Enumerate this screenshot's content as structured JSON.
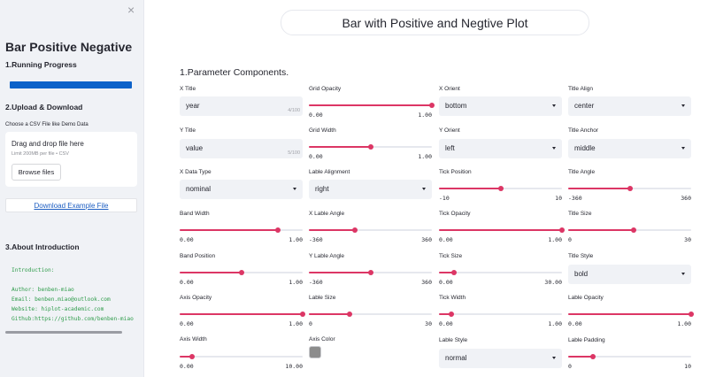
{
  "sidebar": {
    "close_glyph": "×",
    "title": "Bar Positive Negative",
    "running_heading": "1.Running Progress",
    "progress": 1.0,
    "upload_heading": "2.Upload & Download",
    "choose_label": "Choose a CSV File like Demo Data",
    "drop_text": "Drag and drop file here",
    "limit_text": "Limit 200MB per file • CSV",
    "browse_label": "Browse files",
    "download_label": "Download Example File",
    "about_heading": "3.About Introduction",
    "intro_lines": [
      "Introduction:",
      "",
      "Author: benben-miao",
      "Email: benben.miao@outlook.com",
      "Website: hiplot-academic.com",
      "Github:https://github.com/benben-miao"
    ]
  },
  "main": {
    "title": "Bar with Positive and Negtive Plot",
    "section_heading": "1.Parameter Components."
  },
  "controls": {
    "x_title": {
      "label": "X Title",
      "value": "year",
      "count": "4/100"
    },
    "y_title": {
      "label": "Y Title",
      "value": "value",
      "count": "5/100"
    },
    "x_data_type": {
      "label": "X Data Type",
      "value": "nominal"
    },
    "band_width": {
      "label": "Band Width",
      "min": "0.00",
      "max": "1.00",
      "frac": 0.8
    },
    "band_position": {
      "label": "Band Position",
      "min": "0.00",
      "max": "1.00",
      "frac": 0.5
    },
    "axis_opacity": {
      "label": "Axis Opacity",
      "min": "0.00",
      "max": "1.00",
      "frac": 1.0
    },
    "axis_width": {
      "label": "Axis Width",
      "min": "0.00",
      "max": "10.00",
      "frac": 0.1
    },
    "grid_opacity": {
      "label": "Grid Opacity",
      "min": "0.00",
      "max": "1.00",
      "frac": 1.0
    },
    "grid_width": {
      "label": "Grid Width",
      "min": "0.00",
      "max": "1.00",
      "frac": 0.5
    },
    "lable_alignment": {
      "label": "Lable Alignment",
      "value": "right"
    },
    "x_lable_angle": {
      "label": "X Lable Angle",
      "min": "-360",
      "max": "360",
      "frac": 0.375
    },
    "y_lable_angle": {
      "label": "Y Lable Angle",
      "min": "-360",
      "max": "360",
      "frac": 0.5
    },
    "lable_size": {
      "label": "Lable Size",
      "min": "0",
      "max": "30",
      "frac": 0.333
    },
    "axis_color": {
      "label": "Axis Color",
      "value": "#8c8c8c"
    },
    "x_orient": {
      "label": "X Orient",
      "value": "bottom"
    },
    "y_orient": {
      "label": "Y Orient",
      "value": "left"
    },
    "tick_position": {
      "label": "Tick Position",
      "min": "-10",
      "max": "10",
      "frac": 0.5
    },
    "tick_opacity": {
      "label": "Tick Opacity",
      "min": "0.00",
      "max": "1.00",
      "frac": 1.0
    },
    "tick_size": {
      "label": "Tick Size",
      "min": "0.00",
      "max": "30.00",
      "frac": 0.12
    },
    "tick_width": {
      "label": "Tick Width",
      "min": "0.00",
      "max": "1.00",
      "frac": 0.1
    },
    "lable_style": {
      "label": "Lable Style",
      "value": "normal"
    },
    "title_align": {
      "label": "Title Align",
      "value": "center"
    },
    "title_anchor": {
      "label": "Title Anchor",
      "value": "middle"
    },
    "title_angle": {
      "label": "Title Angle",
      "min": "-360",
      "max": "360",
      "frac": 0.5
    },
    "title_size": {
      "label": "Title Size",
      "min": "0",
      "max": "30",
      "frac": 0.533
    },
    "title_style": {
      "label": "Title Style",
      "value": "bold"
    },
    "lable_opacity": {
      "label": "Lable Opacity",
      "min": "0.00",
      "max": "1.00",
      "frac": 1.0
    },
    "lable_padding": {
      "label": "Lable Padding",
      "min": "0",
      "max": "10",
      "frac": 0.2
    }
  },
  "colors": {
    "accent": "#dc3665",
    "progress": "#0d62c9",
    "link": "#1d5ec2",
    "code": "#2e9c4a"
  }
}
